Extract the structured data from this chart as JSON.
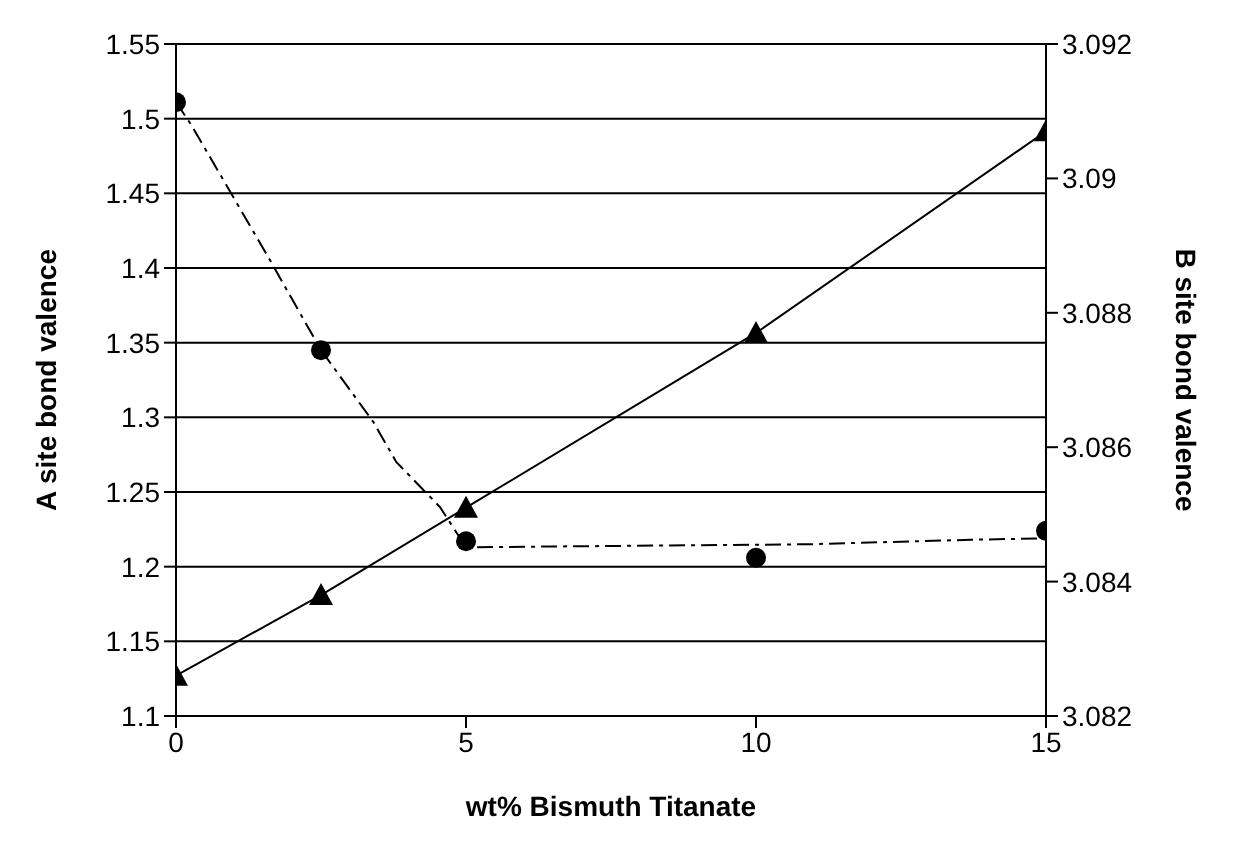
{
  "chart_data": {
    "type": "line",
    "xlabel": "wt% Bismuth Titanate",
    "ylabel": "A site bond valence",
    "y2label": "B site bond valence",
    "xlim": [
      0,
      15
    ],
    "xticks": [
      0,
      5,
      10,
      15
    ],
    "ylim": [
      1.1,
      1.55
    ],
    "yticks": [
      1.1,
      1.15,
      1.2,
      1.25,
      1.3,
      1.35,
      1.4,
      1.45,
      1.5,
      1.55
    ],
    "y2lim": [
      3.082,
      3.092
    ],
    "y2ticks": [
      3.082,
      3.084,
      3.086,
      3.088,
      3.09,
      3.092
    ],
    "grid": "y",
    "series": [
      {
        "type": "scatter",
        "color": "#000000",
        "marker": "circle",
        "x": [
          0,
          2.5,
          5,
          10,
          15
        ],
        "values": [
          1.511,
          1.345,
          1.217,
          1.206,
          1.224
        ]
      },
      {
        "color": "#000000",
        "marker": "none",
        "line_style": "dashed",
        "x": [
          0,
          0.26,
          1.58,
          2.5,
          3.4,
          3.8,
          4.55,
          5,
          10.9,
          13.7,
          15
        ],
        "values": [
          1.511,
          1.496,
          1.408,
          1.345,
          1.297,
          1.27,
          1.24,
          1.213,
          1.215,
          1.218,
          1.219
        ]
      },
      {
        "axis": "y2",
        "color": "#000000",
        "marker": "triangle",
        "line_style": "solid",
        "x": [
          0,
          2.5,
          5,
          10,
          15
        ],
        "values": [
          3.0826,
          3.0838,
          3.0851,
          3.0877,
          3.0907
        ]
      }
    ]
  }
}
